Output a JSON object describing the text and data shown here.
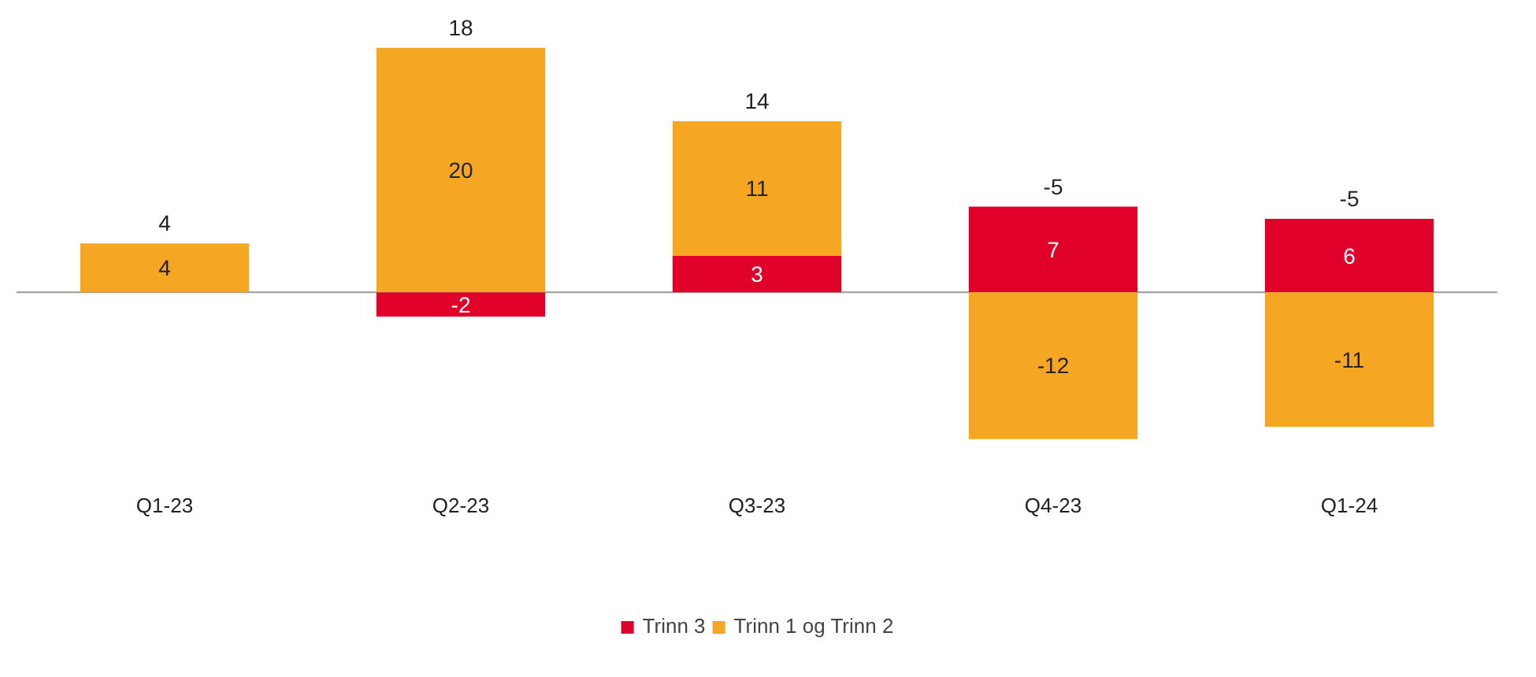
{
  "chart_data": {
    "type": "bar",
    "stacked": true,
    "categories": [
      "Q1-23",
      "Q2-23",
      "Q3-23",
      "Q4-23",
      "Q1-24"
    ],
    "series": [
      {
        "name": "Trinn 3",
        "color": "#e0002a",
        "values": [
          null,
          -2,
          3,
          7,
          6
        ]
      },
      {
        "name": "Trinn 1 og Trinn 2",
        "color": "#f5a623",
        "values": [
          4,
          20,
          11,
          -12,
          -11
        ]
      }
    ],
    "data_labels": true,
    "totals": [
      "4",
      "18",
      "14",
      "-5",
      "-5"
    ],
    "legend": "bottom"
  }
}
